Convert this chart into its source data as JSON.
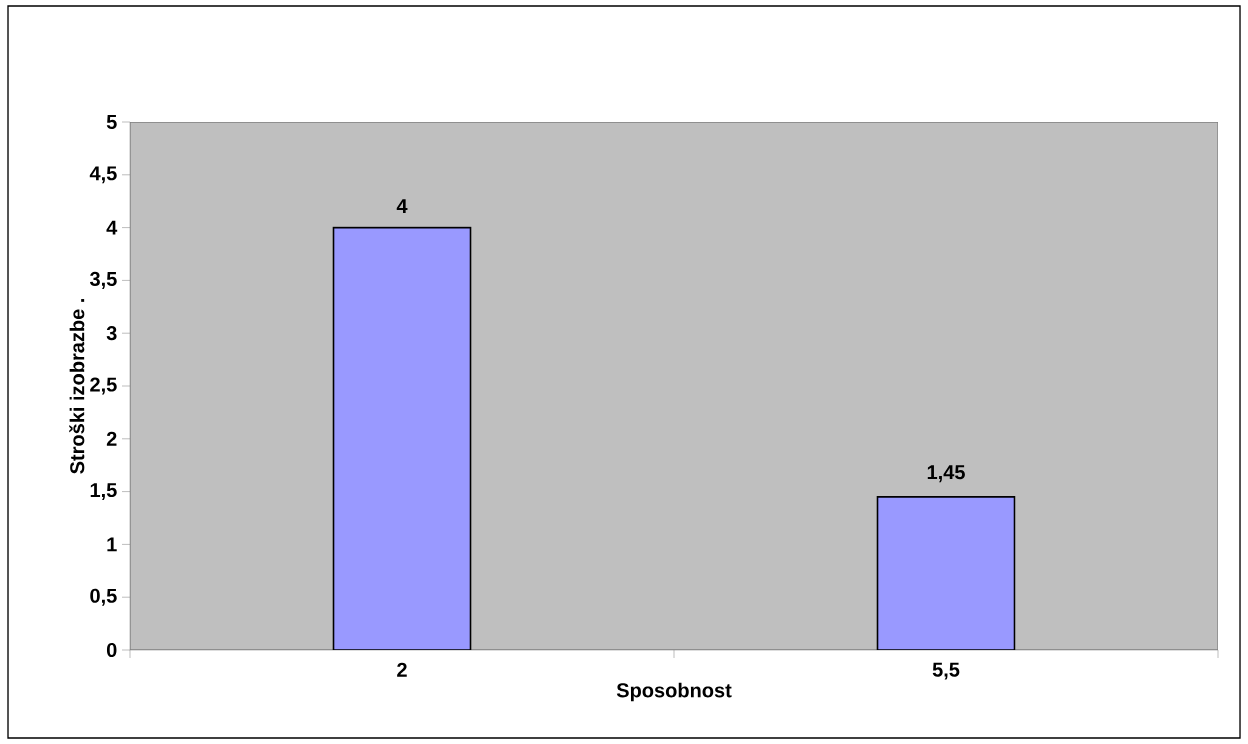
{
  "chart_data": {
    "type": "bar",
    "xlabel": "Sposobnost",
    "ylabel": "Stroški izobrazbe .",
    "categories": [
      "2",
      "5,5"
    ],
    "values": [
      4,
      1.45
    ],
    "value_labels": [
      "4",
      "1,45"
    ],
    "color": "#9999ff",
    "ylim": [
      0,
      5
    ],
    "yticks": [
      0,
      {
        "value": 0.5,
        "label": "0,5"
      },
      1,
      {
        "value": 1.5,
        "label": "1,5"
      },
      2,
      {
        "value": 2.5,
        "label": "2,5"
      },
      3,
      {
        "value": 3.5,
        "label": "3,5"
      },
      4,
      {
        "value": 4.5,
        "label": "4,5"
      },
      5
    ],
    "grid": false
  }
}
